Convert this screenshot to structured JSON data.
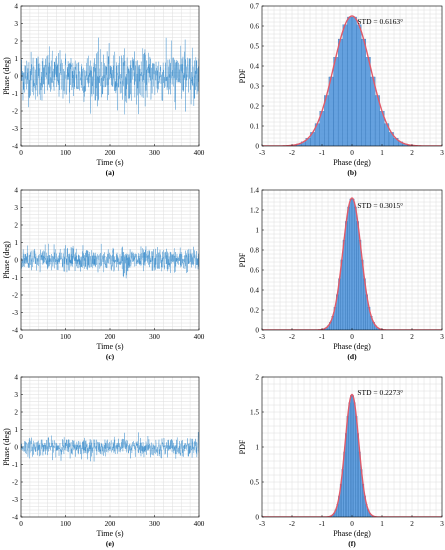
{
  "chart_data": [
    {
      "panel": "(a)",
      "type": "line",
      "series_color": "#2f86c9",
      "xlabel": "Time (s)",
      "ylabel": "Phase (deg)",
      "xlim": [
        0,
        400
      ],
      "ylim": [
        -4,
        4
      ],
      "xticks": [
        0,
        100,
        200,
        300,
        400
      ],
      "yticks": [
        -4,
        -3,
        -2,
        -1,
        0,
        1,
        2,
        3,
        4
      ],
      "signal": {
        "std_deg": 0.6163,
        "envelope_deg": [
          -2.2,
          2.2
        ]
      }
    },
    {
      "panel": "(b)",
      "type": "bar",
      "fit_color": "#e05a6a",
      "bar_color": "#4a90d9",
      "xlabel": "Phase (deg)",
      "ylabel": "PDF",
      "xlim": [
        -3,
        3
      ],
      "ylim": [
        0,
        0.7
      ],
      "xticks": [
        -3,
        -2,
        -1,
        0,
        1,
        2,
        3
      ],
      "yticks": [
        0,
        0.1,
        0.2,
        0.3,
        0.4,
        0.5,
        0.6,
        0.7
      ],
      "std_label": "STD = 0.6163°",
      "std": 0.6163,
      "peak": 0.65
    },
    {
      "panel": "(c)",
      "type": "line",
      "series_color": "#2f86c9",
      "xlabel": "Time (s)",
      "ylabel": "Phase (deg)",
      "xlim": [
        0,
        400
      ],
      "ylim": [
        -4,
        4
      ],
      "xticks": [
        0,
        100,
        200,
        300,
        400
      ],
      "yticks": [
        -4,
        -3,
        -2,
        -1,
        0,
        1,
        2,
        3,
        4
      ],
      "signal": {
        "std_deg": 0.3015,
        "envelope_deg": [
          -1.1,
          1.1
        ]
      }
    },
    {
      "panel": "(d)",
      "type": "bar",
      "fit_color": "#e05a6a",
      "bar_color": "#4a90d9",
      "xlabel": "Phase (deg)",
      "ylabel": "PDF",
      "xlim": [
        -3,
        3
      ],
      "ylim": [
        0,
        1.4
      ],
      "xticks": [
        -3,
        -2,
        -1,
        0,
        1,
        2,
        3
      ],
      "yticks": [
        0,
        0.2,
        0.4,
        0.6,
        0.8,
        1,
        1.2,
        1.4
      ],
      "std_label": "STD = 0.3015°",
      "std": 0.3015,
      "peak": 1.32
    },
    {
      "panel": "(e)",
      "type": "line",
      "series_color": "#2f86c9",
      "xlabel": "Time (s)",
      "ylabel": "Phase (deg)",
      "xlim": [
        0,
        400
      ],
      "ylim": [
        -4,
        4
      ],
      "xticks": [
        0,
        100,
        200,
        300,
        400
      ],
      "yticks": [
        -4,
        -3,
        -2,
        -1,
        0,
        1,
        2,
        3,
        4
      ],
      "signal": {
        "std_deg": 0.2273,
        "envelope_deg": [
          -0.9,
          0.9
        ]
      }
    },
    {
      "panel": "(f)",
      "type": "bar",
      "fit_color": "#e05a6a",
      "bar_color": "#4a90d9",
      "xlabel": "Phase (deg)",
      "ylabel": "PDF",
      "xlim": [
        -3,
        3
      ],
      "ylim": [
        0,
        2
      ],
      "xticks": [
        -3,
        -2,
        -1,
        0,
        1,
        2,
        3
      ],
      "yticks": [
        0,
        0.5,
        1,
        1.5,
        2
      ],
      "std_label": "STD = 0.2273°",
      "std": 0.2273,
      "peak": 1.75
    }
  ]
}
